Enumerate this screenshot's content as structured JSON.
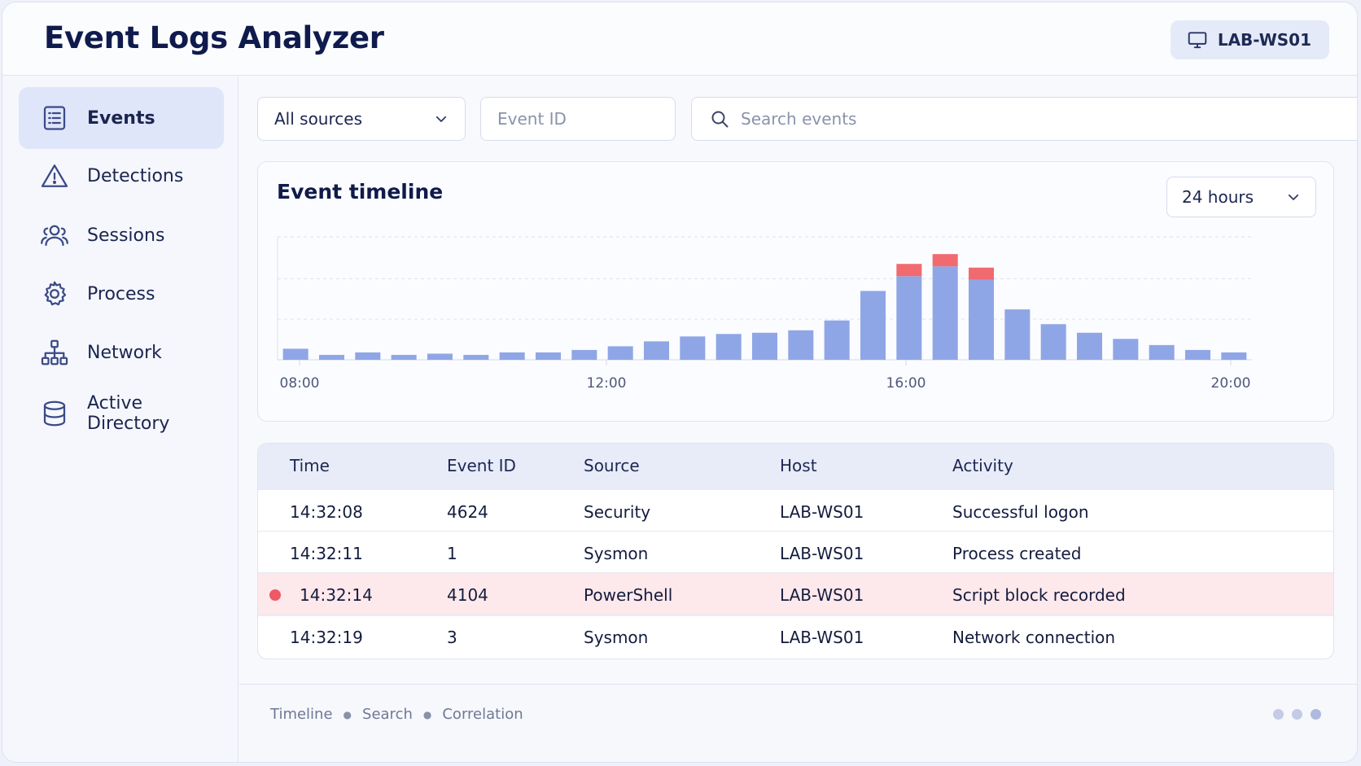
{
  "header": {
    "title": "Event Logs Analyzer",
    "host": "LAB-WS01"
  },
  "sidebar": {
    "items": [
      {
        "label": "Events",
        "icon": "document-list-icon",
        "active": true
      },
      {
        "label": "Detections",
        "icon": "warning-triangle-icon",
        "active": false
      },
      {
        "label": "Sessions",
        "icon": "users-icon",
        "active": false
      },
      {
        "label": "Process",
        "icon": "gear-icon",
        "active": false
      },
      {
        "label": "Network",
        "icon": "network-tree-icon",
        "active": false
      },
      {
        "label": "Active Directory",
        "icon": "database-icon",
        "active": false
      }
    ]
  },
  "filters": {
    "source": "All sources",
    "event_id_placeholder": "Event ID",
    "search_placeholder": "Search events"
  },
  "timeline": {
    "title": "Event timeline",
    "range": "24 hours"
  },
  "chart_data": {
    "type": "bar",
    "stacked": true,
    "x_ticks": [
      "08:00",
      "12:00",
      "16:00",
      "20:00"
    ],
    "ylim": [
      0,
      100
    ],
    "grid": true,
    "series": [
      {
        "values": [
          9,
          4,
          6,
          4,
          5,
          4,
          6,
          6,
          8,
          11,
          15,
          19,
          21,
          22,
          24,
          32,
          56,
          68,
          76,
          65,
          41,
          29,
          22,
          17,
          12,
          8,
          6
        ],
        "color": "#8fa6e6"
      },
      {
        "values": [
          0,
          0,
          0,
          0,
          0,
          0,
          0,
          0,
          0,
          0,
          0,
          0,
          0,
          0,
          0,
          0,
          0,
          10,
          10,
          10,
          0,
          0,
          0,
          0,
          0,
          0,
          0
        ],
        "color": "#f16a6f"
      }
    ]
  },
  "table": {
    "columns": [
      "Time",
      "Event ID",
      "Source",
      "Host",
      "Activity"
    ],
    "rows": [
      {
        "time": "14:32:08",
        "event_id": "4624",
        "source": "Security",
        "host": "LAB-WS01",
        "activity": "Successful logon",
        "alert": false
      },
      {
        "time": "14:32:11",
        "event_id": "1",
        "source": "Sysmon",
        "host": "LAB-WS01",
        "activity": "Process created",
        "alert": false
      },
      {
        "time": "14:32:14",
        "event_id": "4104",
        "source": "PowerShell",
        "host": "LAB-WS01",
        "activity": "Script block recorded",
        "alert": true
      },
      {
        "time": "14:32:19",
        "event_id": "3",
        "source": "Sysmon",
        "host": "LAB-WS01",
        "activity": "Network connection",
        "alert": false
      }
    ]
  },
  "footer": {
    "links": [
      "Timeline",
      "Search",
      "Correlation"
    ],
    "pages": 3
  },
  "colors": {
    "accent": "#8fa6e6",
    "alert": "#f16a6f",
    "alert_row": "#fde8ec",
    "title": "#0f1b4d"
  }
}
